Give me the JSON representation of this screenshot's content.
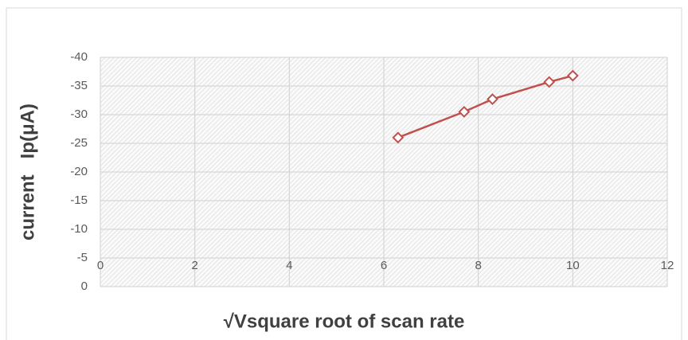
{
  "chart_data": {
    "type": "line",
    "xlabel": "√Vsquare root of scan rate",
    "ylabel": "current   Ip(μA)",
    "x": [
      6.3,
      7.7,
      8.3,
      9.5,
      10
    ],
    "series": [
      {
        "color": "#c0504d",
        "values": [
          -26,
          -30.5,
          -32.7,
          -35.7,
          -36.8
        ]
      }
    ],
    "xlim": [
      0,
      12
    ],
    "xticks": [
      0,
      2,
      4,
      6,
      8,
      10,
      12
    ],
    "ylim": [
      0,
      -40
    ],
    "yticks": [
      0,
      -5,
      -10,
      -15,
      -20,
      -25,
      -30,
      -35,
      -40
    ],
    "grid": true
  }
}
